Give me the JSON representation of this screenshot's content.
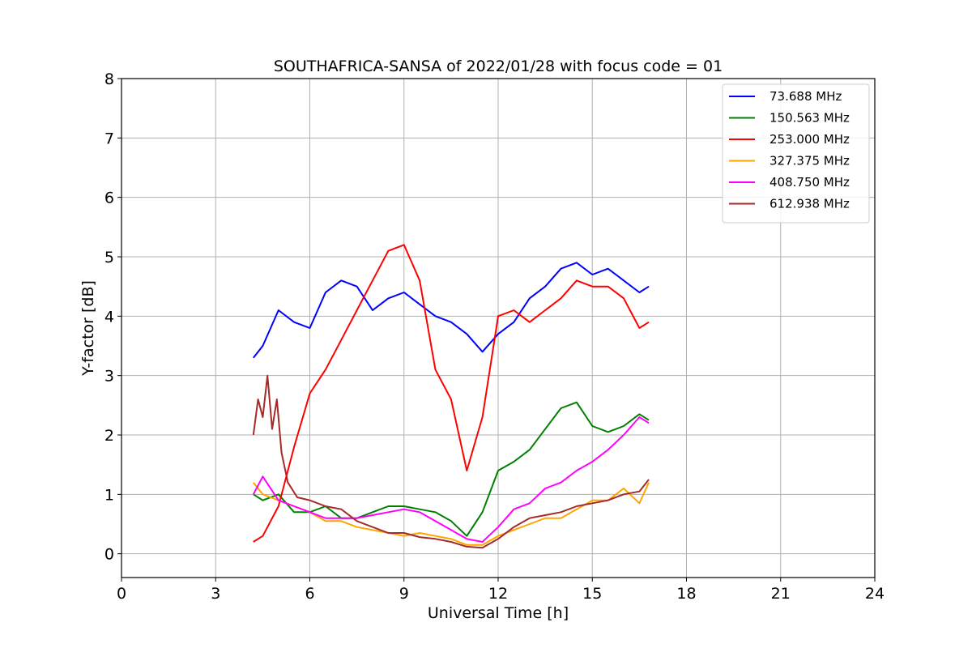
{
  "chart_data": {
    "type": "line",
    "title": "SOUTHAFRICA-SANSA of 2022/01/28 with focus code = 01",
    "xlabel": "Universal Time [h]",
    "ylabel": "Y-factor [dB]",
    "xlim": [
      0,
      24
    ],
    "ylim": [
      -0.4,
      8
    ],
    "xticks": [
      0,
      3,
      6,
      9,
      12,
      15,
      18,
      21,
      24
    ],
    "yticks": [
      0,
      1,
      2,
      3,
      4,
      5,
      6,
      7,
      8
    ],
    "grid": true,
    "legend_position": "top-right",
    "series": [
      {
        "name": " 73.688 MHz",
        "color": "#0000ff",
        "x": [
          4.2,
          4.5,
          5.0,
          5.5,
          6.0,
          6.5,
          7.0,
          7.5,
          8.0,
          8.5,
          9.0,
          9.5,
          10.0,
          10.5,
          11.0,
          11.5,
          12.0,
          12.5,
          13.0,
          13.5,
          14.0,
          14.5,
          15.0,
          15.5,
          16.0,
          16.5,
          16.8
        ],
        "y": [
          3.3,
          3.5,
          4.1,
          3.9,
          3.8,
          4.4,
          4.6,
          4.5,
          4.1,
          4.3,
          4.4,
          4.2,
          4.0,
          3.9,
          3.7,
          3.4,
          3.7,
          3.9,
          4.3,
          4.5,
          4.8,
          4.9,
          4.7,
          4.8,
          4.6,
          4.4,
          4.5
        ]
      },
      {
        "name": "150.563 MHz",
        "color": "#008000",
        "x": [
          4.2,
          4.5,
          5.0,
          5.5,
          6.0,
          6.5,
          7.0,
          7.5,
          8.0,
          8.5,
          9.0,
          9.5,
          10.0,
          10.5,
          11.0,
          11.5,
          12.0,
          12.5,
          13.0,
          13.5,
          14.0,
          14.5,
          15.0,
          15.5,
          16.0,
          16.5,
          16.8
        ],
        "y": [
          1.0,
          0.9,
          1.0,
          0.7,
          0.7,
          0.8,
          0.6,
          0.6,
          0.7,
          0.8,
          0.8,
          0.75,
          0.7,
          0.55,
          0.3,
          0.7,
          1.4,
          1.55,
          1.75,
          2.1,
          2.45,
          2.55,
          2.15,
          2.05,
          2.15,
          2.35,
          2.25
        ]
      },
      {
        "name": "253.000 MHz",
        "color": "#ff0000",
        "x": [
          4.2,
          4.5,
          5.0,
          5.5,
          6.0,
          6.5,
          7.0,
          7.5,
          8.0,
          8.5,
          9.0,
          9.5,
          10.0,
          10.5,
          11.0,
          11.5,
          12.0,
          12.5,
          13.0,
          13.5,
          14.0,
          14.5,
          15.0,
          15.5,
          16.0,
          16.5,
          16.8
        ],
        "y": [
          0.2,
          0.3,
          0.8,
          1.8,
          2.7,
          3.1,
          3.6,
          4.1,
          4.6,
          5.1,
          5.2,
          4.6,
          3.1,
          2.6,
          1.4,
          2.3,
          4.0,
          4.1,
          3.9,
          4.1,
          4.3,
          4.6,
          4.5,
          4.5,
          4.3,
          3.8,
          3.9
        ]
      },
      {
        "name": "327.375 MHz",
        "color": "#ffa500",
        "x": [
          4.2,
          4.5,
          5.0,
          5.5,
          6.0,
          6.5,
          7.0,
          7.5,
          8.0,
          8.5,
          9.0,
          9.5,
          10.0,
          10.5,
          11.0,
          11.5,
          12.0,
          12.5,
          13.0,
          13.5,
          14.0,
          14.5,
          15.0,
          15.5,
          16.0,
          16.5,
          16.8
        ],
        "y": [
          1.2,
          1.0,
          0.9,
          0.8,
          0.7,
          0.55,
          0.55,
          0.45,
          0.4,
          0.35,
          0.3,
          0.35,
          0.3,
          0.25,
          0.15,
          0.15,
          0.3,
          0.4,
          0.5,
          0.6,
          0.6,
          0.75,
          0.9,
          0.9,
          1.1,
          0.85,
          1.2
        ]
      },
      {
        "name": "408.750 MHz",
        "color": "#ff00ff",
        "x": [
          4.2,
          4.5,
          5.0,
          5.5,
          6.0,
          6.5,
          7.0,
          7.5,
          8.0,
          8.5,
          9.0,
          9.5,
          10.0,
          10.5,
          11.0,
          11.5,
          12.0,
          12.5,
          13.0,
          13.5,
          14.0,
          14.5,
          15.0,
          15.5,
          16.0,
          16.5,
          16.8
        ],
        "y": [
          1.0,
          1.3,
          0.9,
          0.8,
          0.7,
          0.6,
          0.6,
          0.6,
          0.65,
          0.7,
          0.75,
          0.7,
          0.55,
          0.4,
          0.25,
          0.2,
          0.45,
          0.75,
          0.85,
          1.1,
          1.2,
          1.4,
          1.55,
          1.75,
          2.0,
          2.3,
          2.2
        ]
      },
      {
        "name": "612.938 MHz",
        "color": "#a52a2a",
        "x": [
          4.2,
          4.35,
          4.5,
          4.65,
          4.8,
          4.95,
          5.1,
          5.3,
          5.6,
          6.0,
          6.5,
          7.0,
          7.5,
          8.0,
          8.5,
          9.0,
          9.5,
          10.0,
          10.5,
          11.0,
          11.5,
          12.0,
          12.5,
          13.0,
          13.5,
          14.0,
          14.5,
          15.0,
          15.5,
          16.0,
          16.5,
          16.8
        ],
        "y": [
          2.0,
          2.6,
          2.3,
          3.0,
          2.1,
          2.6,
          1.7,
          1.2,
          0.95,
          0.9,
          0.8,
          0.75,
          0.55,
          0.45,
          0.35,
          0.35,
          0.28,
          0.25,
          0.2,
          0.12,
          0.1,
          0.25,
          0.45,
          0.6,
          0.65,
          0.7,
          0.8,
          0.85,
          0.9,
          1.0,
          1.05,
          1.25
        ]
      }
    ]
  }
}
